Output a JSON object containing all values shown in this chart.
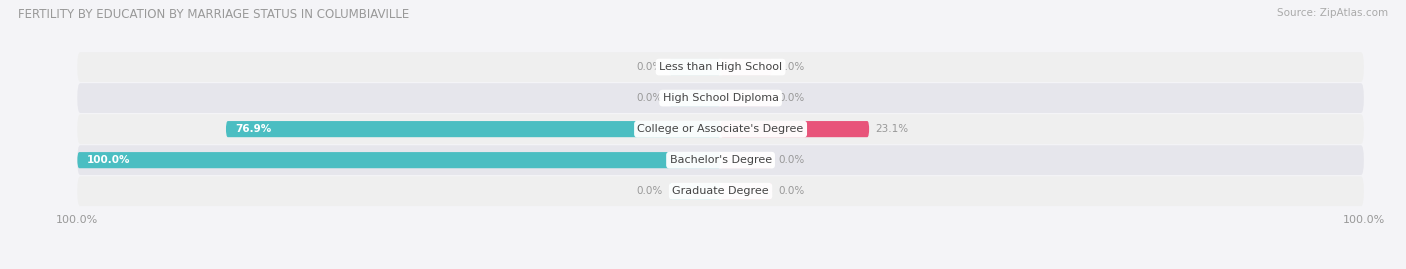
{
  "title": "Female Fertility by Education by Marriage Status in Columbiaville",
  "title_display": "FERTILITY BY EDUCATION BY MARRIAGE STATUS IN COLUMBIAVILLE",
  "source": "Source: ZipAtlas.com",
  "categories": [
    "Less than High School",
    "High School Diploma",
    "College or Associate's Degree",
    "Bachelor's Degree",
    "Graduate Degree"
  ],
  "married_pct": [
    0.0,
    0.0,
    76.9,
    100.0,
    0.0
  ],
  "unmarried_pct": [
    0.0,
    0.0,
    23.1,
    0.0,
    0.0
  ],
  "married_color": "#4bbec2",
  "unmarried_color": "#f093aa",
  "unmarried_color_strong": "#e8547a",
  "married_stub_color": "#7dd4d8",
  "unmarried_stub_color": "#f4b8c8",
  "row_bg_even": "#efefef",
  "row_bg_odd": "#e6e6ec",
  "fig_bg": "#f4f4f7",
  "label_dark": "#999999",
  "label_white": "#ffffff",
  "title_color": "#999999",
  "source_color": "#aaaaaa",
  "legend_color": "#888888",
  "figsize": [
    14.06,
    2.69
  ],
  "dpi": 100,
  "xlim_left": -100,
  "xlim_right": 100,
  "stub_size": 8.0,
  "bar_height": 0.52
}
